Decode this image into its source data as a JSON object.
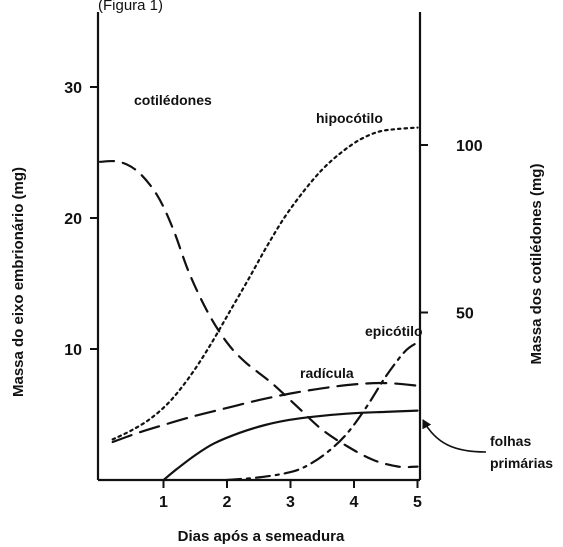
{
  "header_fragment": "(Figura 1)",
  "chart_data": {
    "type": "line",
    "title": "",
    "xlabel": "Dias após a semeadura",
    "ylabel_left": "Massa do eixo embrionário (mg)",
    "ylabel_right": "Massa dos cotilédones (mg)",
    "xlim": [
      0,
      5.2
    ],
    "ylim_left": [
      0,
      34
    ],
    "ylim_right": [
      0,
      115
    ],
    "x_ticks": [
      1,
      2,
      3,
      4,
      5
    ],
    "y_ticks_left": [
      10,
      20,
      30
    ],
    "y_ticks_right": [
      50,
      100
    ],
    "grid": false,
    "series": [
      {
        "name": "cotilédones",
        "axis": "right",
        "style": "dashed",
        "x": [
          0,
          0.3,
          0.6,
          0.9,
          1.15,
          1.4,
          1.7,
          2.0,
          2.3,
          2.7,
          3.1,
          3.5,
          3.9,
          4.3,
          4.7,
          5.0
        ],
        "y": [
          95,
          95,
          92,
          85,
          75,
          62,
          50,
          41,
          35,
          29,
          22,
          15,
          10,
          6,
          4,
          4
        ]
      },
      {
        "name": "hipocótilo",
        "axis": "left",
        "style": "dotted",
        "x": [
          0.2,
          0.5,
          0.8,
          1.1,
          1.4,
          1.7,
          2.0,
          2.3,
          2.6,
          2.9,
          3.2,
          3.5,
          3.8,
          4.1,
          4.4,
          4.7,
          5.0
        ],
        "y": [
          3.1,
          3.8,
          4.7,
          6.0,
          7.8,
          10.0,
          12.5,
          15.0,
          17.6,
          20.0,
          22.0,
          23.7,
          25.0,
          26.0,
          26.6,
          26.8,
          26.9
        ]
      },
      {
        "name": "radícula",
        "axis": "left",
        "style": "long-dash",
        "x": [
          0.2,
          0.6,
          1.0,
          1.5,
          2.0,
          2.5,
          3.0,
          3.5,
          4.0,
          4.5,
          5.0
        ],
        "y": [
          2.9,
          3.6,
          4.2,
          4.9,
          5.5,
          6.1,
          6.6,
          7.0,
          7.3,
          7.4,
          7.2
        ]
      },
      {
        "name": "epicótilo",
        "axis": "left",
        "style": "dash-dot",
        "x": [
          2.0,
          2.5,
          3.0,
          3.3,
          3.6,
          3.9,
          4.2,
          4.5,
          4.8,
          5.0
        ],
        "y": [
          0.0,
          0.2,
          0.6,
          1.2,
          2.2,
          3.6,
          5.6,
          7.9,
          9.8,
          10.5
        ]
      },
      {
        "name": "folhas primárias",
        "axis": "left",
        "style": "solid",
        "x": [
          1.0,
          1.2,
          1.5,
          1.8,
          2.2,
          2.6,
          3.0,
          3.5,
          4.0,
          4.5,
          5.0
        ],
        "y": [
          0.0,
          0.8,
          1.9,
          2.8,
          3.6,
          4.2,
          4.6,
          4.9,
          5.1,
          5.2,
          5.3
        ]
      }
    ],
    "annotations": [
      {
        "text": "cotilédones",
        "series": "cotilédones"
      },
      {
        "text": "hipocótilo",
        "series": "hipocótilo"
      },
      {
        "text": "epicótilo",
        "series": "epicótilo"
      },
      {
        "text": "radícula",
        "series": "radícula"
      },
      {
        "text_lines": [
          "folhas",
          "primárias"
        ],
        "series": "folhas primárias",
        "arrow": true
      }
    ]
  }
}
